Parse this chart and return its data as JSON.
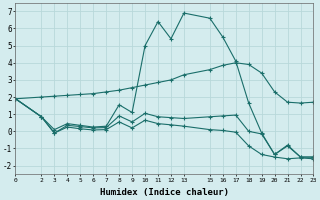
{
  "xlabel": "Humidex (Indice chaleur)",
  "bg_color": "#d4ecee",
  "grid_color": "#b8d8da",
  "line_color": "#1a6e6a",
  "xlim": [
    0,
    23
  ],
  "ylim": [
    -2.5,
    7.5
  ],
  "xticks": [
    0,
    2,
    3,
    4,
    5,
    6,
    7,
    8,
    9,
    10,
    11,
    12,
    13,
    15,
    16,
    17,
    18,
    19,
    20,
    21,
    22,
    23
  ],
  "yticks": [
    -2,
    -1,
    0,
    1,
    2,
    3,
    4,
    5,
    6,
    7
  ],
  "line1_x": [
    0,
    2,
    3,
    4,
    5,
    6,
    7,
    8,
    9,
    10,
    11,
    12,
    13,
    15,
    16,
    17,
    18,
    19,
    20,
    21,
    22,
    23
  ],
  "line1_y": [
    1.9,
    2.0,
    2.05,
    2.1,
    2.15,
    2.2,
    2.3,
    2.4,
    2.55,
    2.7,
    2.85,
    3.0,
    3.3,
    3.6,
    3.85,
    4.0,
    3.9,
    3.4,
    2.3,
    1.7,
    1.65,
    1.7
  ],
  "line2_x": [
    0,
    2,
    3,
    4,
    5,
    6,
    7,
    8,
    9,
    10,
    11,
    12,
    13,
    15,
    16,
    17,
    18,
    19,
    20,
    21,
    22,
    23
  ],
  "line2_y": [
    1.9,
    0.85,
    0.1,
    0.45,
    0.35,
    0.25,
    0.3,
    1.55,
    1.1,
    5.0,
    6.4,
    5.4,
    6.9,
    6.6,
    5.5,
    4.1,
    1.65,
    -0.1,
    -1.35,
    -0.85,
    -1.5,
    -1.5
  ],
  "line3_x": [
    0,
    2,
    3,
    4,
    5,
    6,
    7,
    8,
    9,
    10,
    11,
    12,
    13,
    15,
    16,
    17,
    18,
    19,
    20,
    21,
    22,
    23
  ],
  "line3_y": [
    1.9,
    0.85,
    -0.1,
    0.35,
    0.28,
    0.2,
    0.22,
    0.9,
    0.55,
    1.05,
    0.85,
    0.8,
    0.75,
    0.85,
    0.9,
    0.95,
    0.0,
    -0.15,
    -1.35,
    -0.8,
    -1.5,
    -1.5
  ],
  "line4_x": [
    0,
    2,
    3,
    4,
    5,
    6,
    7,
    8,
    9,
    10,
    11,
    12,
    13,
    15,
    16,
    17,
    18,
    19,
    20,
    21,
    22,
    23
  ],
  "line4_y": [
    1.9,
    0.85,
    -0.1,
    0.25,
    0.15,
    0.08,
    0.1,
    0.55,
    0.2,
    0.65,
    0.45,
    0.38,
    0.3,
    0.1,
    0.05,
    -0.05,
    -0.85,
    -1.35,
    -1.5,
    -1.6,
    -1.55,
    -1.6
  ]
}
